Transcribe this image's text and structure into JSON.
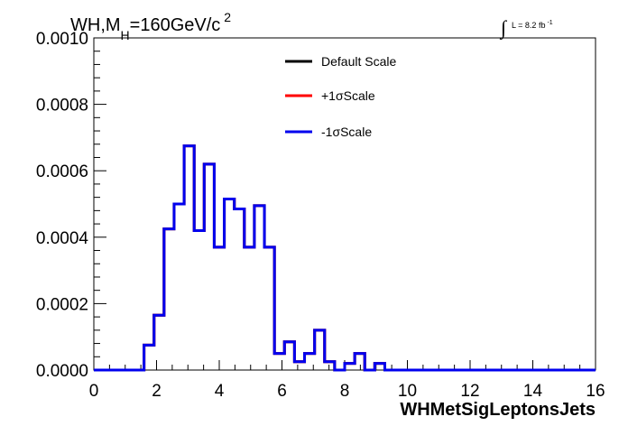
{
  "title": {
    "main": "WH,M",
    "sub": "H",
    "rest": "=160GeV/c",
    "sup": "2"
  },
  "lumi": {
    "integral": "∫",
    "text": "L = 8.2 fb",
    "sup": "-1"
  },
  "chart_data": {
    "type": "line",
    "xlabel": "WHMetSigLeptonsJets",
    "ylabel": "",
    "xlim": [
      0,
      16
    ],
    "ylim": [
      0,
      0.001
    ],
    "x_ticks": [
      0,
      2,
      4,
      6,
      8,
      10,
      12,
      14,
      16
    ],
    "x_tick_labels": [
      "0",
      "2",
      "4",
      "6",
      "8",
      "10",
      "12",
      "14",
      "16"
    ],
    "y_ticks": [
      0,
      0.0002,
      0.0004,
      0.0006,
      0.0008,
      0.001
    ],
    "y_tick_labels": [
      "0.0000",
      "0.0002",
      "0.0004",
      "0.0006",
      "0.0008",
      "0.0010"
    ],
    "bin_width": 0.32,
    "bin_start": 0,
    "legend_position": "top-center",
    "series": [
      {
        "name": "Default Scale",
        "color": "#000000",
        "values": [
          0,
          0,
          0,
          0,
          0,
          7.5e-05,
          0.000165,
          0.000425,
          0.0005,
          0.000675,
          0.00042,
          0.00062,
          0.00037,
          0.000515,
          0.000485,
          0.00037,
          0.000495,
          0.00037,
          5e-05,
          8.5e-05,
          2.5e-05,
          5e-05,
          0.00012,
          2.5e-05,
          0,
          2e-05,
          5e-05,
          0,
          2e-05,
          0,
          0,
          0,
          0,
          0,
          0,
          0,
          0,
          0,
          0,
          0,
          0,
          0,
          0,
          0,
          0,
          0,
          0,
          0,
          0,
          0
        ]
      },
      {
        "name": "+1σScale",
        "color": "#ff0000",
        "values": [
          0,
          0,
          0,
          0,
          0,
          7.5e-05,
          0.000165,
          0.000425,
          0.0005,
          0.000675,
          0.00042,
          0.00062,
          0.00037,
          0.000515,
          0.000485,
          0.00037,
          0.000495,
          0.00037,
          5e-05,
          8.5e-05,
          2.5e-05,
          5e-05,
          0.00012,
          2.5e-05,
          0,
          2e-05,
          5e-05,
          0,
          2e-05,
          0,
          0,
          0,
          0,
          0,
          0,
          0,
          0,
          0,
          0,
          0,
          0,
          0,
          0,
          0,
          0,
          0,
          0,
          0,
          0,
          0
        ]
      },
      {
        "name": "-1σScale",
        "color": "#0000ee",
        "values": [
          0,
          0,
          0,
          0,
          0,
          7.5e-05,
          0.000165,
          0.000425,
          0.0005,
          0.000675,
          0.00042,
          0.00062,
          0.00037,
          0.000515,
          0.000485,
          0.00037,
          0.000495,
          0.00037,
          5e-05,
          8.5e-05,
          2.5e-05,
          5e-05,
          0.00012,
          2.5e-05,
          0,
          2e-05,
          5e-05,
          0,
          2e-05,
          0,
          0,
          0,
          0,
          0,
          0,
          0,
          0,
          0,
          0,
          0,
          0,
          0,
          0,
          0,
          0,
          0,
          0,
          0,
          0,
          0
        ]
      }
    ]
  }
}
